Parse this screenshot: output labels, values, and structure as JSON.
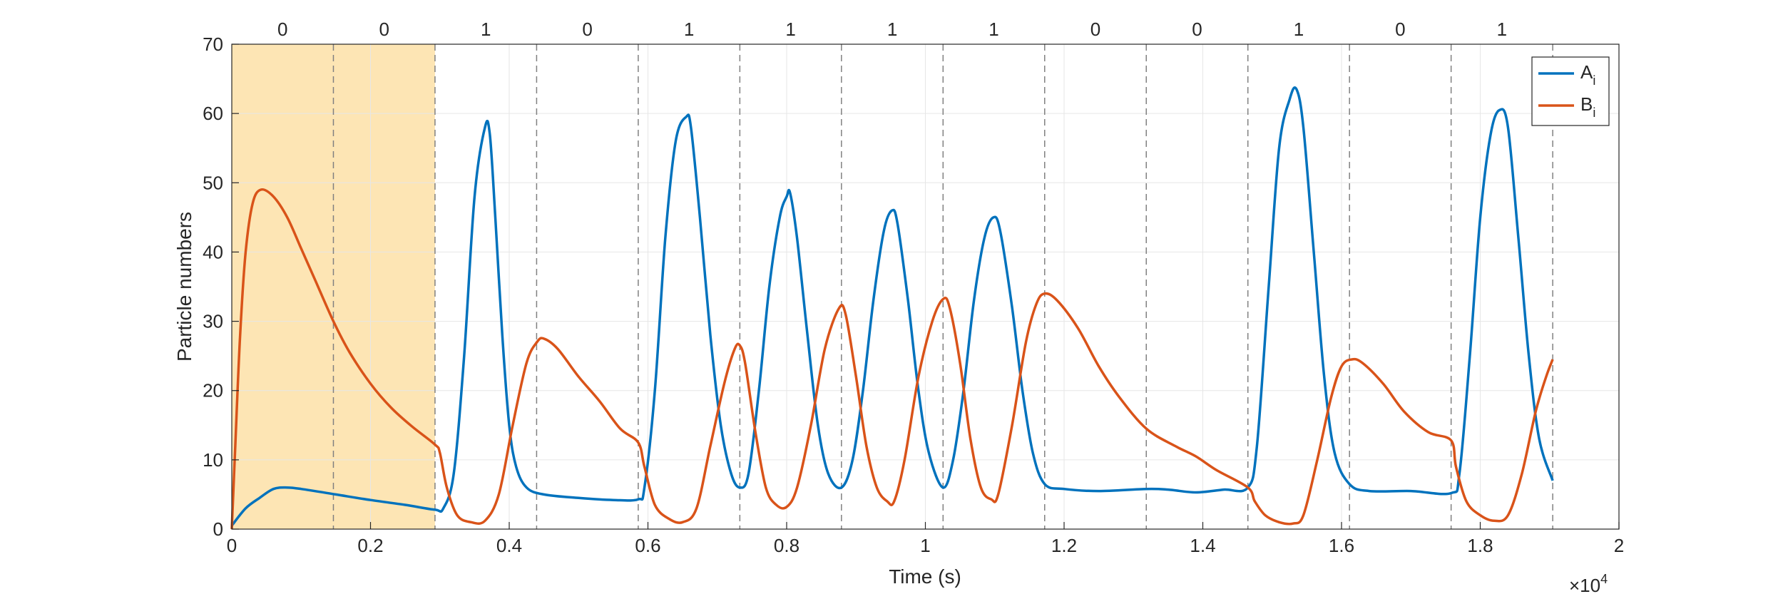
{
  "chart_data": {
    "type": "line",
    "xlabel": "Time (s)",
    "ylabel": "Particle numbers",
    "xlim": [
      0,
      20000
    ],
    "ylim": [
      0,
      70
    ],
    "x_ticks": [
      0,
      2000,
      4000,
      6000,
      8000,
      10000,
      12000,
      14000,
      16000,
      18000,
      20000
    ],
    "x_tick_labels": [
      "0",
      "0.2",
      "0.4",
      "0.6",
      "0.8",
      "1",
      "1.2",
      "1.4",
      "1.6",
      "1.8",
      "2"
    ],
    "x_exponent_base": "×10",
    "x_exponent_power": "4",
    "y_ticks": [
      0,
      10,
      20,
      30,
      40,
      50,
      60,
      70
    ],
    "y_tick_labels": [
      "0",
      "10",
      "20",
      "30",
      "40",
      "50",
      "60",
      "70"
    ],
    "grid": true,
    "legend_placement": "top-right",
    "shaded_region": {
      "x": [
        0,
        2930
      ],
      "color": "#fde5b4"
    },
    "segment_boundaries": [
      1465,
      2930,
      4395,
      5860,
      7325,
      8790,
      10255,
      11720,
      13185,
      14650,
      16115,
      17580,
      19045
    ],
    "segment_labels": [
      "0",
      "0",
      "1",
      "0",
      "1",
      "1",
      "1",
      "1",
      "0",
      "0",
      "1",
      "0",
      "1"
    ],
    "series": [
      {
        "name": "A",
        "subscript": "i",
        "color": "#0072bd",
        "points": [
          [
            0,
            0.5
          ],
          [
            200,
            3
          ],
          [
            400,
            4.5
          ],
          [
            600,
            5.8
          ],
          [
            800,
            6
          ],
          [
            1000,
            5.8
          ],
          [
            1500,
            5
          ],
          [
            2000,
            4.2
          ],
          [
            2500,
            3.5
          ],
          [
            2930,
            2.8
          ],
          [
            3050,
            3
          ],
          [
            3200,
            8
          ],
          [
            3350,
            25
          ],
          [
            3500,
            48
          ],
          [
            3650,
            58
          ],
          [
            3720,
            57
          ],
          [
            3800,
            45
          ],
          [
            3900,
            28
          ],
          [
            4000,
            15
          ],
          [
            4100,
            9
          ],
          [
            4250,
            6
          ],
          [
            4500,
            5
          ],
          [
            5000,
            4.5
          ],
          [
            5500,
            4.2
          ],
          [
            5860,
            4.3
          ],
          [
            5950,
            6
          ],
          [
            6100,
            20
          ],
          [
            6250,
            42
          ],
          [
            6400,
            56
          ],
          [
            6550,
            59.5
          ],
          [
            6620,
            58
          ],
          [
            6750,
            45
          ],
          [
            6900,
            28
          ],
          [
            7050,
            15
          ],
          [
            7200,
            8
          ],
          [
            7325,
            6
          ],
          [
            7450,
            8
          ],
          [
            7600,
            20
          ],
          [
            7750,
            35
          ],
          [
            7900,
            45
          ],
          [
            8000,
            48
          ],
          [
            8050,
            48.5
          ],
          [
            8150,
            42
          ],
          [
            8300,
            28
          ],
          [
            8450,
            15
          ],
          [
            8600,
            8
          ],
          [
            8790,
            6
          ],
          [
            8950,
            10
          ],
          [
            9100,
            20
          ],
          [
            9250,
            33
          ],
          [
            9400,
            43
          ],
          [
            9520,
            46
          ],
          [
            9600,
            44
          ],
          [
            9750,
            33
          ],
          [
            9900,
            20
          ],
          [
            10050,
            11
          ],
          [
            10255,
            6
          ],
          [
            10400,
            10
          ],
          [
            10550,
            20
          ],
          [
            10700,
            33
          ],
          [
            10850,
            42
          ],
          [
            10980,
            45
          ],
          [
            11080,
            43
          ],
          [
            11250,
            32
          ],
          [
            11400,
            20
          ],
          [
            11550,
            11
          ],
          [
            11720,
            6.5
          ],
          [
            12000,
            5.8
          ],
          [
            12500,
            5.5
          ],
          [
            13185,
            5.8
          ],
          [
            13500,
            5.7
          ],
          [
            13900,
            5.3
          ],
          [
            14300,
            5.7
          ],
          [
            14650,
            6
          ],
          [
            14780,
            12
          ],
          [
            14950,
            35
          ],
          [
            15100,
            55
          ],
          [
            15250,
            62
          ],
          [
            15350,
            63.5
          ],
          [
            15450,
            58
          ],
          [
            15600,
            40
          ],
          [
            15750,
            22
          ],
          [
            15900,
            11
          ],
          [
            16115,
            6.5
          ],
          [
            16400,
            5.5
          ],
          [
            17000,
            5.5
          ],
          [
            17580,
            5.2
          ],
          [
            17700,
            8
          ],
          [
            17850,
            25
          ],
          [
            18000,
            45
          ],
          [
            18150,
            57
          ],
          [
            18280,
            60.5
          ],
          [
            18400,
            58
          ],
          [
            18550,
            42
          ],
          [
            18700,
            25
          ],
          [
            18850,
            13
          ],
          [
            19045,
            7
          ]
        ]
      },
      {
        "name": "B",
        "subscript": "i",
        "color": "#d95319",
        "points": [
          [
            0,
            0
          ],
          [
            50,
            12
          ],
          [
            120,
            28
          ],
          [
            200,
            40
          ],
          [
            300,
            47
          ],
          [
            420,
            49
          ],
          [
            600,
            48
          ],
          [
            800,
            45
          ],
          [
            1000,
            40.5
          ],
          [
            1200,
            36
          ],
          [
            1465,
            30
          ],
          [
            1700,
            25.5
          ],
          [
            2000,
            21
          ],
          [
            2300,
            17.5
          ],
          [
            2600,
            14.8
          ],
          [
            2930,
            12.2
          ],
          [
            3000,
            11
          ],
          [
            3100,
            6
          ],
          [
            3250,
            2
          ],
          [
            3450,
            1
          ],
          [
            3650,
            1.2
          ],
          [
            3850,
            5
          ],
          [
            4050,
            15
          ],
          [
            4250,
            24
          ],
          [
            4400,
            27
          ],
          [
            4500,
            27.5
          ],
          [
            4700,
            26
          ],
          [
            5000,
            22
          ],
          [
            5300,
            18.5
          ],
          [
            5600,
            14.5
          ],
          [
            5860,
            12.5
          ],
          [
            5950,
            9
          ],
          [
            6100,
            3.5
          ],
          [
            6300,
            1.5
          ],
          [
            6500,
            1
          ],
          [
            6700,
            3
          ],
          [
            6900,
            12
          ],
          [
            7100,
            21
          ],
          [
            7250,
            26
          ],
          [
            7325,
            26.5
          ],
          [
            7400,
            24
          ],
          [
            7550,
            14
          ],
          [
            7700,
            6
          ],
          [
            7850,
            3.5
          ],
          [
            8000,
            3.2
          ],
          [
            8150,
            6
          ],
          [
            8350,
            15
          ],
          [
            8550,
            26
          ],
          [
            8750,
            31.8
          ],
          [
            8850,
            31
          ],
          [
            9000,
            22
          ],
          [
            9150,
            12
          ],
          [
            9300,
            6
          ],
          [
            9450,
            4
          ],
          [
            9550,
            4
          ],
          [
            9700,
            10
          ],
          [
            9900,
            22
          ],
          [
            10100,
            30
          ],
          [
            10255,
            33.2
          ],
          [
            10350,
            32
          ],
          [
            10500,
            24
          ],
          [
            10650,
            13
          ],
          [
            10800,
            6
          ],
          [
            10950,
            4.3
          ],
          [
            11050,
            5
          ],
          [
            11250,
            15
          ],
          [
            11450,
            27
          ],
          [
            11600,
            32.5
          ],
          [
            11720,
            34
          ],
          [
            11900,
            33
          ],
          [
            12200,
            29
          ],
          [
            12500,
            23.5
          ],
          [
            12800,
            19
          ],
          [
            13185,
            14.5
          ],
          [
            13600,
            12
          ],
          [
            13900,
            10.5
          ],
          [
            14200,
            8.5
          ],
          [
            14650,
            6
          ],
          [
            14750,
            4
          ],
          [
            14900,
            2
          ],
          [
            15100,
            1
          ],
          [
            15300,
            0.8
          ],
          [
            15450,
            2
          ],
          [
            15650,
            10
          ],
          [
            15850,
            19
          ],
          [
            16000,
            23.5
          ],
          [
            16150,
            24.5
          ],
          [
            16300,
            24
          ],
          [
            16600,
            21
          ],
          [
            16900,
            17
          ],
          [
            17250,
            14
          ],
          [
            17580,
            12.8
          ],
          [
            17650,
            9
          ],
          [
            17800,
            4
          ],
          [
            18000,
            2
          ],
          [
            18200,
            1.2
          ],
          [
            18400,
            2
          ],
          [
            18600,
            8
          ],
          [
            18800,
            17
          ],
          [
            18950,
            22
          ],
          [
            19045,
            24.5
          ]
        ]
      }
    ]
  }
}
